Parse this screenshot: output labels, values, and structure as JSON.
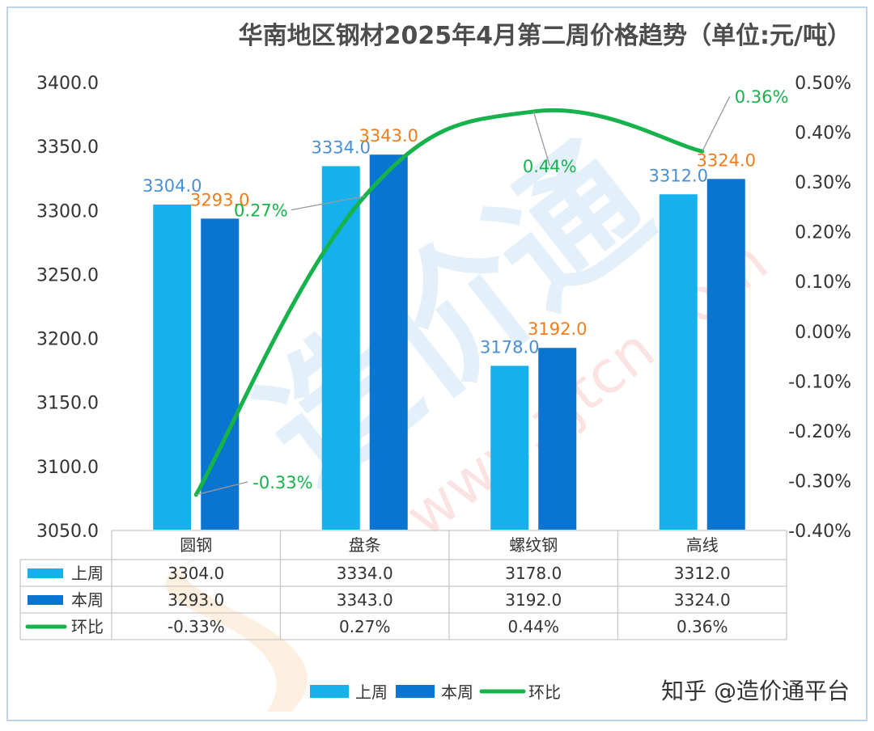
{
  "chart_data": {
    "type": "bar",
    "title": "华南地区钢材2025年4月第二周价格趋势（单位:元/吨）",
    "categories": [
      "圆钢",
      "盘条",
      "螺纹钢",
      "高线"
    ],
    "series": [
      {
        "name": "上周",
        "kind": "bar",
        "axis": "left",
        "color": "#14b1ec",
        "values": [
          3304.0,
          3334.0,
          3178.0,
          3312.0
        ],
        "labels": [
          "3304.0",
          "3334.0",
          "3178.0",
          "3312.0"
        ]
      },
      {
        "name": "本周",
        "kind": "bar",
        "axis": "left",
        "color": "#0a74d1",
        "values": [
          3293.0,
          3343.0,
          3192.0,
          3324.0
        ],
        "labels": [
          "3293.0",
          "3343.0",
          "3192.0",
          "3324.0"
        ]
      },
      {
        "name": "环比",
        "kind": "line",
        "axis": "right",
        "color": "#16b24b",
        "values": [
          -0.33,
          0.27,
          0.44,
          0.36
        ],
        "labels": [
          "-0.33%",
          "0.27%",
          "0.44%",
          "0.36%"
        ]
      }
    ],
    "left_axis": {
      "min": 3050,
      "max": 3400,
      "ticks": [
        3400,
        3350,
        3300,
        3250,
        3200,
        3150,
        3100,
        3050
      ],
      "tick_labels": [
        "3400.0",
        "3350.0",
        "3300.0",
        "3250.0",
        "3200.0",
        "3150.0",
        "3100.0",
        "3050.0"
      ]
    },
    "right_axis": {
      "min": -0.4,
      "max": 0.5,
      "ticks": [
        0.5,
        0.4,
        0.3,
        0.2,
        0.1,
        0.0,
        -0.1,
        -0.2,
        -0.3,
        -0.4
      ],
      "tick_labels": [
        "0.50%",
        "0.40%",
        "0.30%",
        "0.20%",
        "0.10%",
        "0.00%",
        "-0.10%",
        "-0.20%",
        "-0.30%",
        "-0.40%"
      ]
    },
    "grid": false,
    "legend": "bottom-center",
    "data_table": {
      "rows": [
        {
          "series": "上周",
          "cells": [
            "3304.0",
            "3334.0",
            "3178.0",
            "3312.0"
          ]
        },
        {
          "series": "本周",
          "cells": [
            "3293.0",
            "3343.0",
            "3192.0",
            "3324.0"
          ]
        },
        {
          "series": "环比",
          "cells": [
            "-0.33%",
            "0.27%",
            "0.44%",
            "0.36%"
          ]
        }
      ]
    },
    "label_colors": {
      "上周": "#4a8ed6",
      "本周": "#f07d1c",
      "环比": "#16b24b"
    }
  },
  "watermark": {
    "text": "造价通",
    "url": "www.zjtcn.com"
  },
  "credit": "知乎 @造价通平台"
}
